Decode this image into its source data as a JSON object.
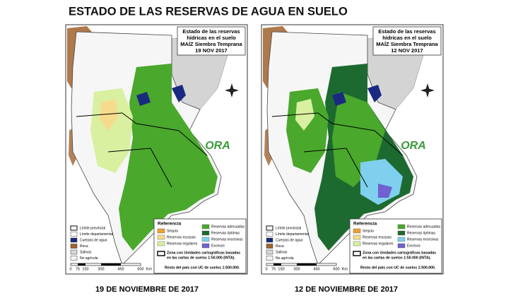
{
  "title": "ESTADO DE LAS RESERVAS DE AGUA EN SUELO",
  "maps": [
    {
      "box": [
        "Estado de las reservas",
        "hídricas en el suelo",
        "MAÍZ Siembra Temprana",
        "19 NOV 2017"
      ],
      "caption": "19 DE NOVIEMBRE DE 2017"
    },
    {
      "box": [
        "Estado de las reservas",
        "hídricas en el suelo",
        "MAÍZ Siembra Temprana",
        "12 NOV 2017"
      ],
      "caption": "12 DE NOVIEMBRE DE 2017"
    }
  ],
  "logo": "ORA",
  "legend": {
    "title": "Referencia",
    "classes": [
      {
        "name": "Sequía",
        "color": "#f0a030"
      },
      {
        "name": "Reservas escasas",
        "color": "#f5dc8c"
      },
      {
        "name": "Reservas regulares",
        "color": "#d8f0a0"
      },
      {
        "name": "Reservas adecuadas",
        "color": "#4aa82c"
      },
      {
        "name": "Reservas óptimas",
        "color": "#1d6a30"
      },
      {
        "name": "Reservas excesivas",
        "color": "#7fd0ee"
      },
      {
        "name": "Excesos",
        "color": "#7060d0"
      }
    ],
    "base": [
      {
        "name": "Límite provincial",
        "color": "#ffffff"
      },
      {
        "name": "Límite departamental",
        "color": "#ffffff"
      },
      {
        "name": "Cuerpos de agua",
        "color": "#1a2a80"
      },
      {
        "name": "Roca",
        "color": "#a0622d"
      },
      {
        "name": "Salinas",
        "color": "#d8d8d8"
      },
      {
        "name": "No agrícola",
        "color": "#f4f4f4"
      }
    ],
    "zone": [
      "Zona con Unidades cartográficas basadas",
      "en las cartas de suelos 1:50.000 (INTA)."
    ],
    "rest": "Resto del país con UC de suelos 1:500.000."
  },
  "scale": [
    "0",
    "75",
    "150",
    "300",
    "450",
    "600",
    "Km"
  ]
}
